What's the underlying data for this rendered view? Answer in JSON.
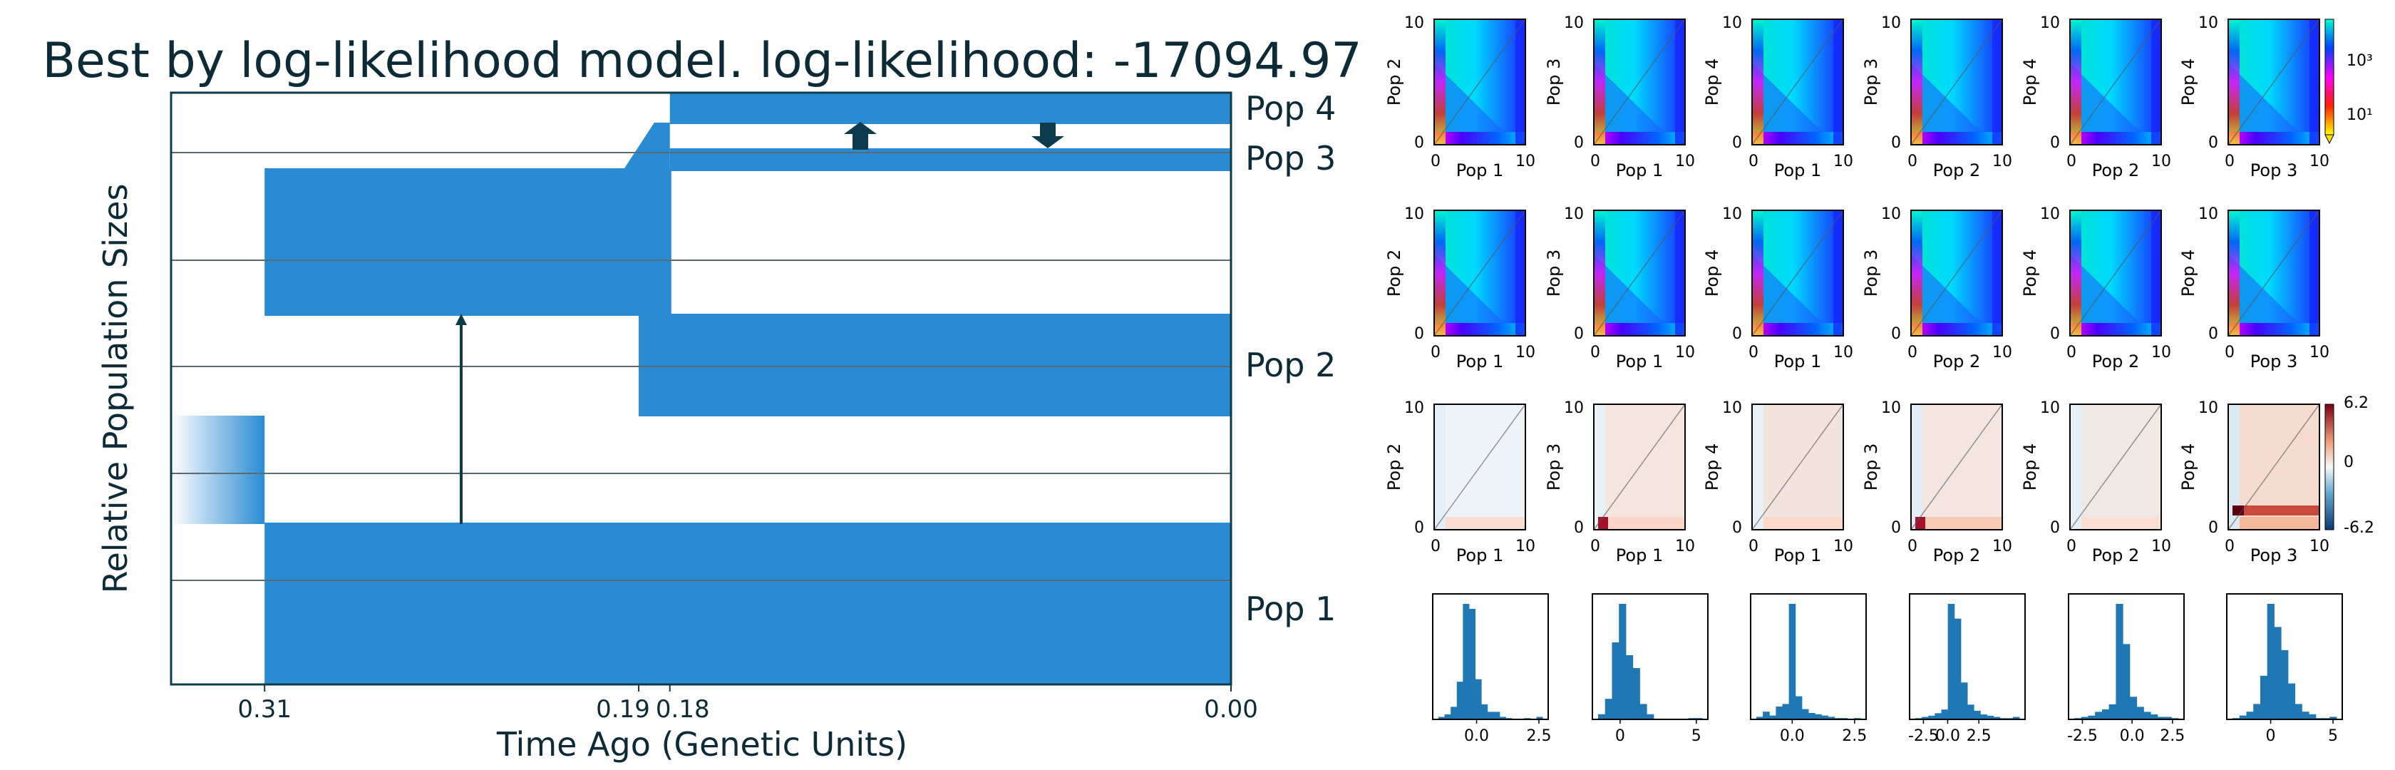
{
  "title": "Best by log-likelihood model. log-likelihood: -17094.97",
  "colors": {
    "pop_fill": "#2a8bd3",
    "frame": "#0d3b4e",
    "text": "#0d2b36",
    "grid": "#5a6a70",
    "bar": "#1f77b4"
  },
  "chart_data": [
    {
      "type": "area",
      "description_kind": "demographic model",
      "xlabel": "Time Ago (Genetic Units)",
      "ylabel": "Relative Population Sizes",
      "xtick_labels": [
        "0.31",
        "0.19",
        "0.18",
        "0.00"
      ],
      "xticks": [
        0.31,
        0.19,
        0.18,
        0.0
      ],
      "xlim": [
        0.34,
        0.0
      ],
      "populations": [
        {
          "name": "Pop 1",
          "events": [
            {
              "t_start": 0.31,
              "t_end": 0.0,
              "size_start": 1.0,
              "size_end": 1.0
            }
          ]
        },
        {
          "name": "Pop 2",
          "events": [
            {
              "t_start": 0.31,
              "t_end": 0.19,
              "size_start": 0.97,
              "size_end": 0.97
            },
            {
              "t_start": 0.19,
              "t_end": 0.0,
              "size_start": 0.97,
              "size_end": 0.67
            }
          ]
        },
        {
          "name": "Pop 3",
          "events": [
            {
              "t_start": 0.18,
              "t_end": 0.0,
              "size_start": 0.15,
              "size_end": 0.15
            }
          ]
        },
        {
          "name": "Pop 4",
          "events": [
            {
              "t_start": 0.18,
              "t_end": 0.0,
              "size_start": 0.2,
              "size_end": 0.2
            }
          ]
        }
      ],
      "ancestral": {
        "t": 0.34,
        "size": 0.7
      },
      "migrations": [
        {
          "from": "Pop 1",
          "to": "Pop 2",
          "t_start": 0.31,
          "t_end": 0.19,
          "direction": "up"
        },
        {
          "from": "Pop 3",
          "to": "Pop 4",
          "t_start": 0.18,
          "t_end": 0.0,
          "direction": "up"
        },
        {
          "from": "Pop 4",
          "to": "Pop 3",
          "t_start": 0.18,
          "t_end": 0.0,
          "direction": "down"
        }
      ]
    },
    {
      "type": "heatmap",
      "panels": "2D SFS grids (model, data, residuals)",
      "pairs": [
        {
          "xlabel": "Pop 1",
          "ylabel": "Pop 2"
        },
        {
          "xlabel": "Pop 1",
          "ylabel": "Pop 3"
        },
        {
          "xlabel": "Pop 1",
          "ylabel": "Pop 4"
        },
        {
          "xlabel": "Pop 2",
          "ylabel": "Pop 3"
        },
        {
          "xlabel": "Pop 2",
          "ylabel": "Pop 4"
        },
        {
          "xlabel": "Pop 3",
          "ylabel": "Pop 4"
        }
      ],
      "tick_labels": [
        "0",
        "10"
      ],
      "colorbar_top": [
        "10³",
        "10¹"
      ],
      "colorbar_resid": [
        "6.2",
        "0",
        "-6.2"
      ]
    },
    {
      "type": "bar",
      "histograms": [
        {
          "ticks": [
            "0.0",
            "2.5"
          ],
          "values": [
            2,
            4,
            10,
            30,
            92,
            88,
            32,
            12,
            6,
            6,
            2,
            1,
            0,
            0,
            1,
            0,
            2
          ]
        },
        {
          "ticks": [
            "0",
            "5"
          ],
          "values": [
            4,
            16,
            60,
            90,
            50,
            40,
            12,
            4,
            0,
            0,
            0,
            0,
            0,
            1,
            1
          ]
        },
        {
          "ticks": [
            "0.0",
            "2.5"
          ],
          "values": [
            2,
            6,
            3,
            10,
            12,
            90,
            18,
            8,
            5,
            4,
            3,
            2,
            1,
            1,
            0,
            1
          ]
        },
        {
          "ticks": [
            "-2.5",
            "0.0",
            "2.5"
          ],
          "values": [
            1,
            2,
            3,
            5,
            8,
            94,
            82,
            30,
            12,
            7,
            4,
            3,
            2,
            1,
            1,
            2
          ]
        },
        {
          "ticks": [
            "-2.5",
            "0.0",
            "2.5"
          ],
          "values": [
            1,
            2,
            3,
            6,
            8,
            12,
            92,
            60,
            18,
            10,
            6,
            4,
            2,
            2,
            1
          ]
        },
        {
          "ticks": [
            "0",
            "5"
          ],
          "values": [
            1,
            3,
            6,
            12,
            34,
            90,
            72,
            54,
            28,
            12,
            6,
            4,
            1,
            1,
            2
          ]
        }
      ]
    }
  ]
}
